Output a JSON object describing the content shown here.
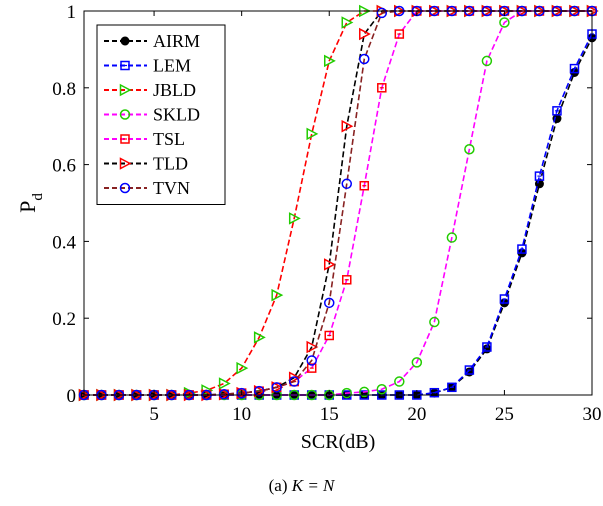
{
  "chart_data": {
    "type": "line",
    "xlabel": "SCR(dB)",
    "ylabel": "P",
    "ylabel_sub": "d",
    "xlim": [
      1,
      30
    ],
    "ylim": [
      0,
      1
    ],
    "xticks": [
      5,
      10,
      15,
      20,
      25,
      30
    ],
    "yticks": [
      0,
      0.2,
      0.4,
      0.6,
      0.8,
      1
    ],
    "ytick_labels": [
      "0",
      "0.2",
      "0.4",
      "0.6",
      "0.8",
      "1"
    ],
    "grid": false,
    "legend_position": "top-left",
    "x": [
      1,
      2,
      3,
      4,
      5,
      6,
      7,
      8,
      9,
      10,
      11,
      12,
      13,
      14,
      15,
      16,
      17,
      18,
      19,
      20,
      21,
      22,
      23,
      24,
      25,
      26,
      27,
      28,
      29,
      30
    ],
    "series": [
      {
        "name": "AIRM",
        "color": "#000000",
        "marker": "filled-circle",
        "values": [
          0,
          0,
          0,
          0,
          0,
          0,
          0,
          0,
          0,
          0,
          0,
          0,
          0,
          0,
          0,
          0,
          0,
          0,
          0,
          0,
          0.005,
          0.02,
          0.06,
          0.12,
          0.24,
          0.37,
          0.55,
          0.72,
          0.84,
          0.93
        ]
      },
      {
        "name": "LEM",
        "color": "#0000ff",
        "marker": "square-dot",
        "values": [
          0,
          0,
          0,
          0,
          0,
          0,
          0,
          0,
          0,
          0,
          0,
          0,
          0,
          0,
          0,
          0,
          0,
          0,
          0,
          0,
          0.006,
          0.02,
          0.065,
          0.125,
          0.25,
          0.38,
          0.57,
          0.74,
          0.85,
          0.94
        ]
      },
      {
        "name": "JBLD",
        "color": "#ff0000",
        "marker": "triangle-right",
        "marker_color": "#22cc00",
        "values": [
          0,
          0,
          0,
          0,
          0,
          0,
          0.005,
          0.012,
          0.03,
          0.07,
          0.15,
          0.26,
          0.46,
          0.68,
          0.87,
          0.97,
          1,
          1,
          1,
          1,
          1,
          1,
          1,
          1,
          1,
          1,
          1,
          1,
          1,
          1
        ]
      },
      {
        "name": "SKLD",
        "color": "#ff00ff",
        "marker": "circle",
        "marker_color": "#22cc00",
        "values": [
          0,
          0,
          0,
          0,
          0,
          0,
          0,
          0,
          0,
          0,
          0,
          0,
          0,
          0,
          0,
          0.005,
          0.008,
          0.015,
          0.035,
          0.085,
          0.19,
          0.41,
          0.64,
          0.87,
          0.97,
          1,
          1,
          1,
          1,
          1
        ]
      },
      {
        "name": "TSL",
        "color": "#ff00ff",
        "marker": "square-dot",
        "marker_color": "#ff0000",
        "values": [
          0,
          0,
          0,
          0,
          0,
          0,
          0,
          0,
          0.002,
          0.005,
          0.01,
          0.02,
          0.035,
          0.07,
          0.155,
          0.3,
          0.545,
          0.8,
          0.94,
          1,
          1,
          1,
          1,
          1,
          1,
          1,
          1,
          1,
          1,
          1
        ]
      },
      {
        "name": "TLD",
        "color": "#000000",
        "marker": "triangle-right",
        "marker_color": "#ff0000",
        "values": [
          0,
          0,
          0,
          0,
          0,
          0,
          0,
          0,
          0.002,
          0.005,
          0.01,
          0.02,
          0.045,
          0.125,
          0.34,
          0.7,
          0.94,
          1,
          1,
          1,
          1,
          1,
          1,
          1,
          1,
          1,
          1,
          1,
          1,
          1
        ]
      },
      {
        "name": "TVN",
        "color": "#882222",
        "marker": "circle",
        "marker_color": "#0000ff",
        "values": [
          0,
          0,
          0,
          0,
          0,
          0,
          0,
          0,
          0.002,
          0.005,
          0.01,
          0.02,
          0.035,
          0.09,
          0.24,
          0.55,
          0.875,
          0.995,
          1,
          1,
          1,
          1,
          1,
          1,
          1,
          1,
          1,
          1,
          1,
          1
        ]
      }
    ]
  },
  "caption": {
    "prefix": "(a)",
    "math": "K = N"
  }
}
